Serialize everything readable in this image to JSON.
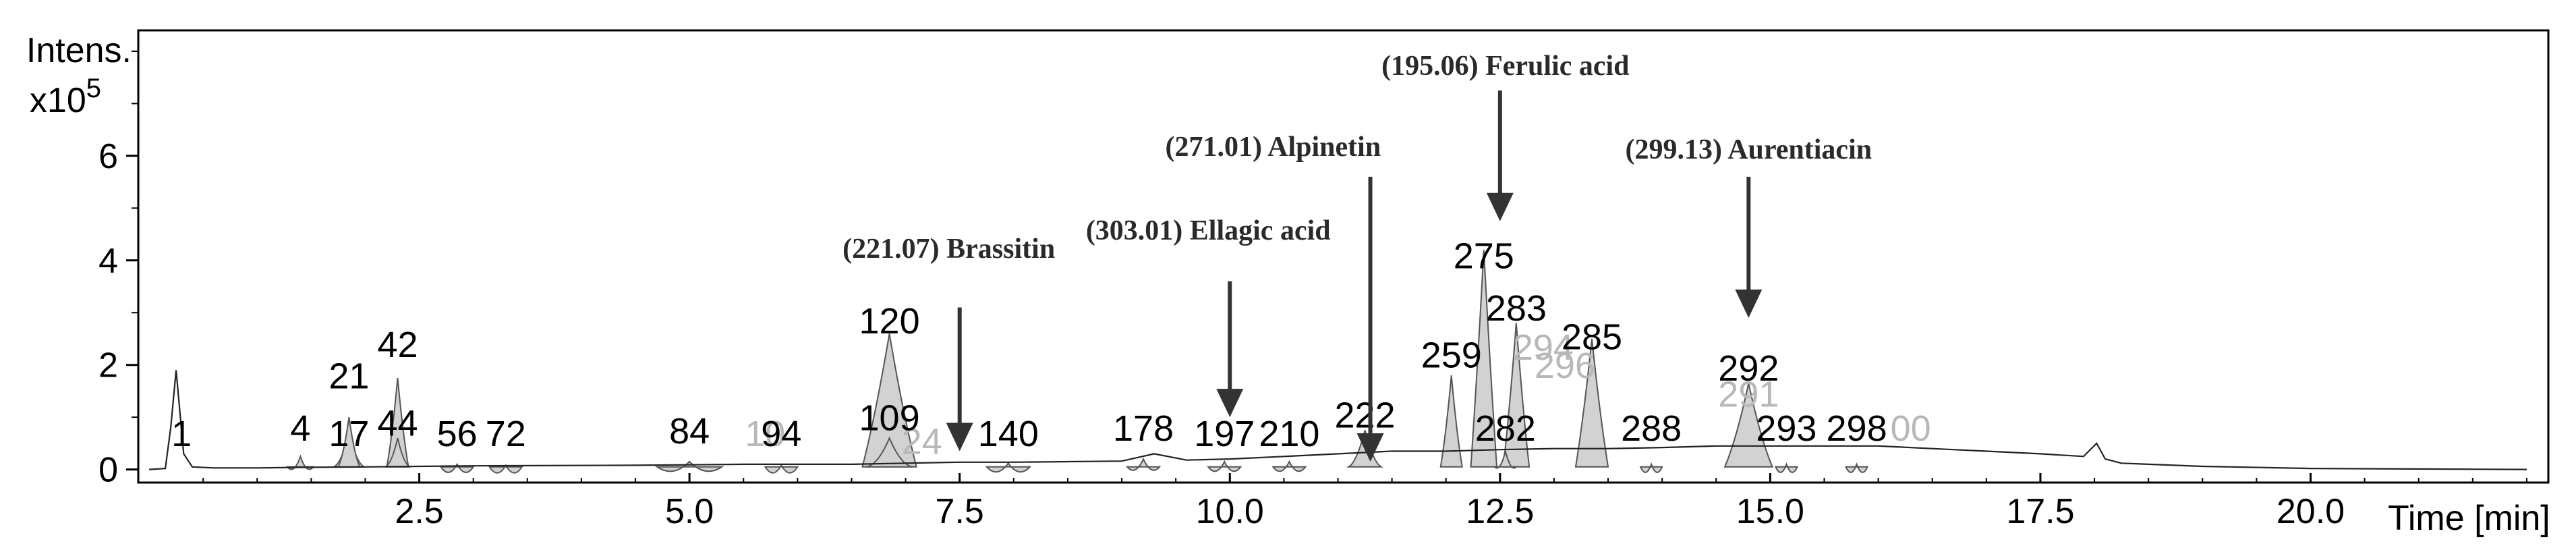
{
  "chart_data": {
    "type": "line",
    "y_axis_label": "Intens.",
    "y_multiplier_base": "x10",
    "y_multiplier_exp": "5",
    "x_axis_label": "Time [min]",
    "xlim": [
      -0.1,
      22.2
    ],
    "ylim": [
      -0.25,
      8.4
    ],
    "x_ticks": [
      {
        "value": 2.5,
        "label": "2.5"
      },
      {
        "value": 5.0,
        "label": "5.0"
      },
      {
        "value": 7.5,
        "label": "7.5"
      },
      {
        "value": 10.0,
        "label": "10.0"
      },
      {
        "value": 12.5,
        "label": "12.5"
      },
      {
        "value": 15.0,
        "label": "15.0"
      },
      {
        "value": 17.5,
        "label": "17.5"
      },
      {
        "value": 20.0,
        "label": "20.0"
      }
    ],
    "y_ticks": [
      {
        "value": 0,
        "label": "0"
      },
      {
        "value": 2,
        "label": "2"
      },
      {
        "value": 4,
        "label": "4"
      },
      {
        "value": 6,
        "label": "6"
      }
    ],
    "baseline_series": {
      "x": [
        0,
        0.15,
        0.2,
        0.25,
        0.32,
        0.4,
        0.6,
        1.0,
        1.4,
        2.0,
        2.5,
        3.0,
        4.5,
        5.0,
        5.5,
        6.5,
        7.0,
        7.5,
        8.0,
        9.0,
        9.3,
        9.6,
        10.0,
        10.5,
        11.0,
        11.5,
        12.0,
        12.5,
        13.0,
        13.5,
        14.0,
        14.5,
        15.0,
        15.5,
        16.0,
        16.5,
        17.0,
        17.5,
        17.9,
        18.02,
        18.1,
        18.25,
        18.5,
        19.0,
        20.0,
        21.0,
        22.0
      ],
      "y": [
        0.0,
        0.02,
        0.8,
        1.9,
        0.3,
        0.05,
        0.03,
        0.03,
        0.04,
        0.05,
        0.06,
        0.07,
        0.08,
        0.09,
        0.1,
        0.1,
        0.12,
        0.14,
        0.14,
        0.16,
        0.3,
        0.18,
        0.2,
        0.25,
        0.3,
        0.35,
        0.35,
        0.38,
        0.4,
        0.4,
        0.42,
        0.45,
        0.45,
        0.45,
        0.45,
        0.4,
        0.35,
        0.3,
        0.25,
        0.5,
        0.2,
        0.12,
        0.1,
        0.06,
        0.02,
        0.01,
        0.0
      ]
    },
    "peaks": [
      {
        "label": "1",
        "x": 0.3,
        "apex": 0.0,
        "half_width": 0.0,
        "label_y": 0.45
      },
      {
        "label": "4",
        "x": 1.4,
        "apex": 0.25,
        "half_width": 0.12,
        "label_y": 0.55
      },
      {
        "label": "17",
        "x": 1.85,
        "apex": 0.7,
        "half_width": 0.14,
        "label_y": 0.45
      },
      {
        "label": "21",
        "x": 1.85,
        "apex": 1.0,
        "half_width": 0.1,
        "label_y": 1.55
      },
      {
        "label": "42",
        "x": 2.3,
        "apex": 1.75,
        "half_width": 0.1,
        "label_y": 2.15
      },
      {
        "label": "44",
        "x": 2.3,
        "apex": 0.6,
        "half_width": 0.12,
        "label_y": 0.65
      },
      {
        "label": "56",
        "x": 2.85,
        "apex": 0.1,
        "half_width": 0.15,
        "label_y": 0.45
      },
      {
        "label": "72",
        "x": 3.3,
        "apex": 0.08,
        "half_width": 0.15,
        "label_y": 0.45
      },
      {
        "label": "84",
        "x": 5.0,
        "apex": 0.15,
        "half_width": 0.3,
        "label_y": 0.5
      },
      {
        "label": "94",
        "x": 5.85,
        "apex": 0.08,
        "half_width": 0.15,
        "label_y": 0.45
      },
      {
        "label": "120",
        "x": 6.85,
        "apex": 2.6,
        "half_width": 0.25,
        "label_y": 2.6
      },
      {
        "label": "109",
        "x": 6.85,
        "apex": 0.6,
        "half_width": 0.22,
        "label_y": 0.75
      },
      {
        "label": "140",
        "x": 7.95,
        "apex": 0.12,
        "half_width": 0.2,
        "label_y": 0.45
      },
      {
        "label": "178",
        "x": 9.2,
        "apex": 0.2,
        "half_width": 0.15,
        "label_y": 0.55
      },
      {
        "label": "197",
        "x": 9.95,
        "apex": 0.15,
        "half_width": 0.15,
        "label_y": 0.45
      },
      {
        "label": "210",
        "x": 10.55,
        "apex": 0.15,
        "half_width": 0.15,
        "label_y": 0.45
      },
      {
        "label": "222",
        "x": 11.25,
        "apex": 0.75,
        "half_width": 0.15,
        "label_y": 0.8
      },
      {
        "label": "259",
        "x": 12.05,
        "apex": 1.8,
        "half_width": 0.1,
        "label_y": 1.95
      },
      {
        "label": "275",
        "x": 12.35,
        "apex": 4.2,
        "half_width": 0.12,
        "label_y": 3.85
      },
      {
        "label": "283",
        "x": 12.65,
        "apex": 2.8,
        "half_width": 0.12,
        "label_y": 2.85
      },
      {
        "label": "282",
        "x": 12.55,
        "apex": 0.35,
        "half_width": 0.1,
        "label_y": 0.55
      },
      {
        "label": "285",
        "x": 13.35,
        "apex": 2.5,
        "half_width": 0.15,
        "label_y": 2.3
      },
      {
        "label": "288",
        "x": 13.9,
        "apex": 0.1,
        "half_width": 0.1,
        "label_y": 0.55
      },
      {
        "label": "292",
        "x": 14.8,
        "apex": 1.65,
        "half_width": 0.22,
        "label_y": 1.7
      },
      {
        "label": "293",
        "x": 15.15,
        "apex": 0.1,
        "half_width": 0.1,
        "label_y": 0.55
      },
      {
        "label": "298",
        "x": 15.8,
        "apex": 0.1,
        "half_width": 0.1,
        "label_y": 0.55
      }
    ],
    "ghost_labels": [
      {
        "label": "10",
        "x": 5.7,
        "y": 0.45
      },
      {
        "label": "24",
        "x": 7.15,
        "y": 0.3
      },
      {
        "label": "294",
        "x": 12.9,
        "y": 2.1
      },
      {
        "label": "296",
        "x": 13.1,
        "y": 1.75
      },
      {
        "label": "291",
        "x": 14.8,
        "y": 1.2
      },
      {
        "label": "00",
        "x": 16.3,
        "y": 0.55
      }
    ],
    "annotations": [
      {
        "text": "(221.07) Brassitin",
        "text_x": 7.4,
        "text_y": 4.05,
        "arrow_x": 7.5,
        "arrow_top": 3.1,
        "arrow_bottom": 0.35
      },
      {
        "text": "(303.01) Ellagic acid",
        "text_x": 9.8,
        "text_y": 4.4,
        "arrow_x": 10.0,
        "arrow_top": 3.6,
        "arrow_bottom": 1.0
      },
      {
        "text": "(271.01) Alpinetin",
        "text_x": 10.4,
        "text_y": 6.0,
        "arrow_x": 11.3,
        "arrow_top": 5.6,
        "arrow_bottom": 0.15
      },
      {
        "text": "(195.06) Ferulic acid",
        "text_x": 12.55,
        "text_y": 7.55,
        "arrow_x": 12.5,
        "arrow_top": 7.25,
        "arrow_bottom": 4.75
      },
      {
        "text": "(299.13) Aurentiacin",
        "text_x": 14.8,
        "text_y": 5.95,
        "arrow_x": 14.8,
        "arrow_top": 5.6,
        "arrow_bottom": 2.9
      }
    ]
  }
}
